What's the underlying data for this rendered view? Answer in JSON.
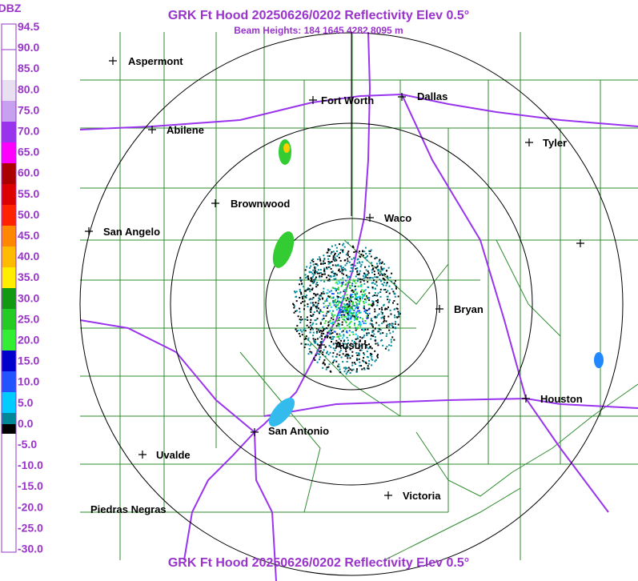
{
  "header": {
    "title": "GRK Ft Hood 20250626/0202 Reflectivity Elev 0.5°",
    "subtitle": "Beam Heights: 184 1645 4282 8095 m"
  },
  "legend": {
    "unit": "DBZ",
    "labels": [
      "94.5",
      "90.0",
      "85.0",
      "80.0",
      "75.0",
      "70.0",
      "65.0",
      "60.0",
      "55.0",
      "50.0",
      "45.0",
      "40.0",
      "35.0",
      "30.0",
      "25.0",
      "20.0",
      "15.0",
      "10.0",
      "5.0",
      "0.0",
      "-5.0",
      "-10.0",
      "-15.0",
      "-20.0",
      "-25.0",
      "-30.0"
    ]
  },
  "cities": [
    "Aspermont",
    "Fort Worth",
    "Dallas",
    "Abilene",
    "Tyler",
    "Brownwood",
    "Waco",
    "San Angelo",
    "Bryan",
    "Austin",
    "Houston",
    "San Antonio",
    "Uvalde",
    "Victoria",
    "Piedras Negras"
  ],
  "footer": "GRK Ft Hood 20250626/0202 Reflectivity Elev 0.5°"
}
